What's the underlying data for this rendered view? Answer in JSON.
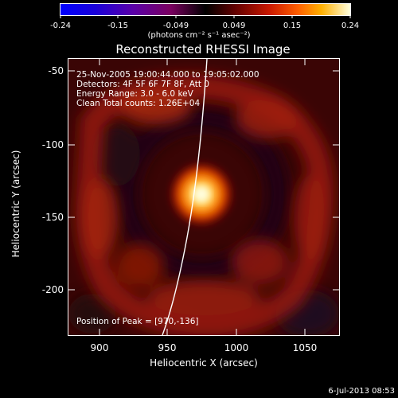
{
  "colorbar": {
    "ticks": [
      "-0.24",
      "-0.15",
      "-0.049",
      "0.049",
      "0.15",
      "0.24"
    ],
    "units": "(photons cm⁻² s⁻¹ asec⁻²)"
  },
  "title": "Reconstructed RHESSI Image",
  "annotation": {
    "time": "25-Nov-2005 19:00:44.000 to 19:05:02.000",
    "detectors": "Detectors: 4F 5F 6F 7F 8F, Att 0",
    "energy": "Energy Range: 3.0 - 6.0 keV",
    "clean": "Clean    Total counts: 1.26E+04",
    "peak": "Position of Peak = [970,-136]"
  },
  "axes": {
    "xlabel": "Heliocentric X (arcsec)",
    "ylabel": "Heliocentric Y (arcsec)",
    "xticks": [
      "900",
      "950",
      "1000",
      "1050"
    ],
    "yticks": [
      "-50",
      "-100",
      "-150",
      "-200"
    ]
  },
  "timestamp": "6-Jul-2013 08:53",
  "colors": {
    "limb": "#ffffff",
    "background": "#000000"
  }
}
